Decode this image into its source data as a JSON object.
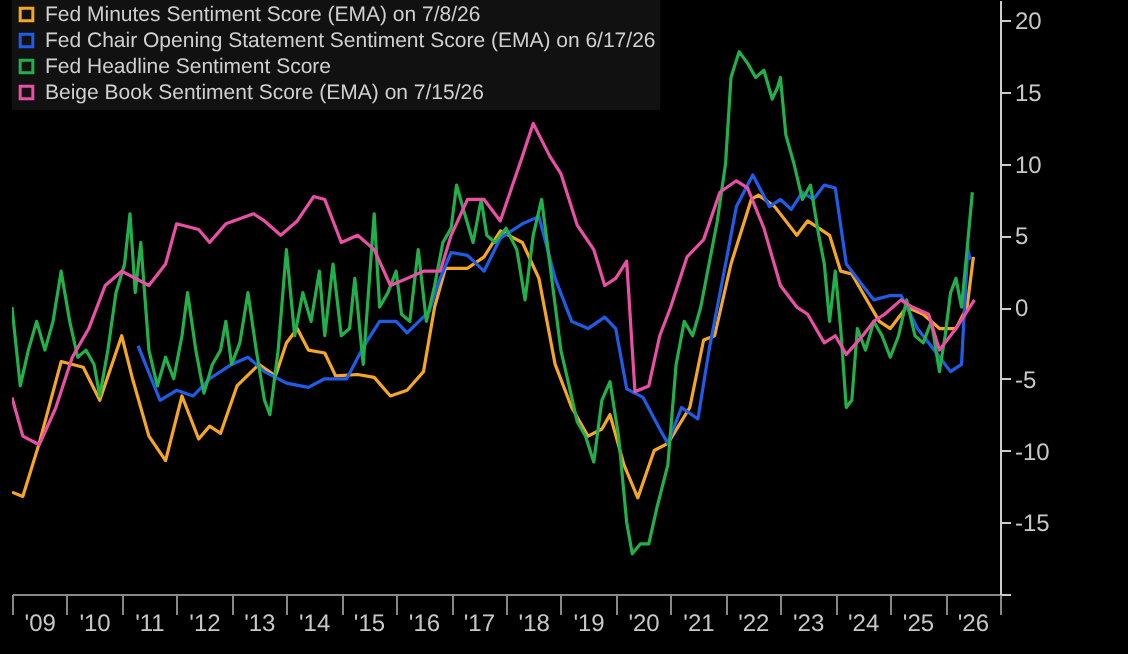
{
  "chart_data": {
    "type": "line",
    "xlim": [
      "2009-01-01",
      "2027-01-01"
    ],
    "xticks": [
      {
        "value": "2009-01-01",
        "label": null
      },
      {
        "value": "2009-07-01",
        "label": "'09"
      },
      {
        "value": "2010-01-01",
        "label": null
      },
      {
        "value": "2010-07-01",
        "label": "'10"
      },
      {
        "value": "2011-01-01",
        "label": null
      },
      {
        "value": "2011-07-01",
        "label": "'11"
      },
      {
        "value": "2012-01-01",
        "label": null
      },
      {
        "value": "2012-07-01",
        "label": "'12"
      },
      {
        "value": "2013-01-01",
        "label": null
      },
      {
        "value": "2013-07-01",
        "label": "'13"
      },
      {
        "value": "2014-01-01",
        "label": null
      },
      {
        "value": "2014-07-01",
        "label": "'14"
      },
      {
        "value": "2015-01-01",
        "label": null
      },
      {
        "value": "2015-07-01",
        "label": "'15"
      },
      {
        "value": "2016-01-01",
        "label": null
      },
      {
        "value": "2016-07-01",
        "label": "'16"
      },
      {
        "value": "2017-01-01",
        "label": null
      },
      {
        "value": "2017-07-01",
        "label": "'17"
      },
      {
        "value": "2018-01-01",
        "label": null
      },
      {
        "value": "2018-07-01",
        "label": "'18"
      },
      {
        "value": "2019-01-01",
        "label": null
      },
      {
        "value": "2019-07-01",
        "label": "'19"
      },
      {
        "value": "2020-01-01",
        "label": null
      },
      {
        "value": "2020-07-01",
        "label": "'20"
      },
      {
        "value": "2021-01-01",
        "label": null
      },
      {
        "value": "2021-07-01",
        "label": "'21"
      },
      {
        "value": "2022-01-01",
        "label": null
      },
      {
        "value": "2022-07-01",
        "label": "'22"
      },
      {
        "value": "2023-01-01",
        "label": null
      },
      {
        "value": "2023-07-01",
        "label": "'23"
      },
      {
        "value": "2024-01-01",
        "label": null
      },
      {
        "value": "2024-07-01",
        "label": "'24"
      },
      {
        "value": "2025-01-01",
        "label": null
      },
      {
        "value": "2025-07-01",
        "label": "'25"
      },
      {
        "value": "2026-01-01",
        "label": null
      },
      {
        "value": "2026-07-01",
        "label": "'26"
      },
      {
        "value": "2027-01-01",
        "label": null
      }
    ],
    "ylim": [
      -20,
      21.4
    ],
    "yticks": [
      {
        "value": -20,
        "label": null
      },
      -15,
      -10,
      -5,
      0,
      5,
      10,
      15,
      20
    ],
    "grid": false,
    "legend": "top left",
    "marker": "none",
    "line_style": "solid",
    "series": [
      {
        "name": "Fed Minutes Sentiment Score (EMA) on 7/8/26",
        "color": "#f5a623",
        "x": [
          "2009-01-01",
          "2009-03-14",
          "2009-07-01",
          "2009-11-24",
          "2010-04-20",
          "2010-08-08",
          "2011-01-01",
          "2011-03-14",
          "2011-07-01",
          "2011-10-20",
          "2012-02-06",
          "2012-05-27",
          "2012-08-08",
          "2012-10-20",
          "2013-02-06",
          "2013-07-01",
          "2013-10-20",
          "2014-01-01",
          "2014-03-14",
          "2014-05-27",
          "2014-09-13",
          "2014-11-24",
          "2015-04-20",
          "2015-08-08",
          "2015-11-24",
          "2016-03-14",
          "2016-07-01",
          "2016-09-13",
          "2016-11-24",
          "2017-04-20",
          "2017-08-08",
          "2017-11-24",
          "2018-04-20",
          "2018-08-08",
          "2018-11-24",
          "2019-03-14",
          "2019-07-01",
          "2019-10-01",
          "2019-11-24",
          "2020-02-25",
          "2020-05-27",
          "2020-09-13",
          "2020-12-13",
          "2021-05-08",
          "2021-08-08",
          "2021-10-20",
          "2022-02-06",
          "2022-06-21",
          "2022-08-08",
          "2022-11-24",
          "2023-04-20",
          "2023-07-01",
          "2023-09-13",
          "2023-11-24",
          "2024-02-06",
          "2024-04-20",
          "2024-07-01",
          "2024-10-20",
          "2025-01-01",
          "2025-04-20",
          "2025-08-08",
          "2025-11-24",
          "2026-03-14",
          "2026-05-27",
          "2026-07-08"
        ],
        "values": [
          -12.9,
          -13.2,
          -9.5,
          -3.8,
          -4.2,
          -6.5,
          -2,
          -5,
          -9,
          -10.7,
          -6.2,
          -9.2,
          -8.3,
          -8.8,
          -5.5,
          -4,
          -4.8,
          -2.5,
          -1.5,
          -3,
          -3.2,
          -4.8,
          -4.7,
          -4.9,
          -6.2,
          -5.8,
          -4.5,
          0,
          2.7,
          2.7,
          3.5,
          5.3,
          4.5,
          2,
          -4,
          -7,
          -9,
          -8.5,
          -7.5,
          -11,
          -13.3,
          -10,
          -9.5,
          -7,
          -2.3,
          -2,
          3,
          7.5,
          7.8,
          7,
          5,
          6,
          5.5,
          5,
          2.5,
          2.3,
          1,
          -1,
          -1.5,
          0,
          -0.5,
          -1.5,
          -1.5,
          0,
          3.5
        ]
      },
      {
        "name": "Fed Chair Opening Statement Sentiment Score (EMA) on 6/17/26",
        "color": "#1f5ce8",
        "x": [
          "2011-04-20",
          "2011-09-13",
          "2012-01-01",
          "2012-04-20",
          "2012-08-08",
          "2013-01-01",
          "2013-04-20",
          "2013-08-08",
          "2014-01-01",
          "2014-05-27",
          "2014-09-13",
          "2015-02-06",
          "2015-05-27",
          "2015-09-13",
          "2016-01-01",
          "2016-03-14",
          "2016-08-08",
          "2016-10-20",
          "2017-01-01",
          "2017-04-20",
          "2017-08-08",
          "2017-11-24",
          "2018-04-20",
          "2018-08-08",
          "2018-11-24",
          "2019-03-14",
          "2019-07-01",
          "2019-10-20",
          "2020-01-01",
          "2020-03-14",
          "2020-07-01",
          "2020-10-20",
          "2020-12-13",
          "2021-03-14",
          "2021-07-01",
          "2021-09-13",
          "2022-01-01",
          "2022-03-14",
          "2022-07-01",
          "2022-10-20",
          "2023-01-01",
          "2023-03-14",
          "2023-05-27",
          "2023-08-08",
          "2023-10-20",
          "2024-01-01",
          "2024-03-14",
          "2024-07-01",
          "2024-09-13",
          "2025-01-01",
          "2025-03-14",
          "2025-07-01",
          "2025-10-20",
          "2026-02-06",
          "2026-04-20",
          "2026-05-15",
          "2026-06-01",
          "2026-06-17"
        ],
        "values": [
          -2.7,
          -6.5,
          -5.8,
          -6.2,
          -5,
          -4,
          -3.5,
          -4.5,
          -5.3,
          -5.6,
          -5,
          -5,
          -2.8,
          -1,
          -1,
          -1.8,
          -0.3,
          2,
          3.8,
          3.6,
          2.5,
          4.8,
          5.8,
          6.3,
          2,
          -1,
          -1.5,
          -0.7,
          -1.5,
          -5.7,
          -6.3,
          -8.5,
          -9.5,
          -7,
          -7.8,
          -3,
          3,
          7,
          9.2,
          7,
          7.5,
          6.8,
          8,
          7.5,
          8.5,
          8.3,
          3,
          1.5,
          0.5,
          0.8,
          0.8,
          -1.5,
          -3,
          -4.5,
          -4,
          1,
          4,
          3.3
        ]
      },
      {
        "name": "Fed Headline Sentiment Score",
        "color": "#22b04a",
        "x": [
          "2009-01-01",
          "2009-02-25",
          "2009-04-20",
          "2009-06-14",
          "2009-08-08",
          "2009-10-01",
          "2009-11-24",
          "2010-01-20",
          "2010-03-14",
          "2010-05-08",
          "2010-07-01",
          "2010-08-08",
          "2010-10-01",
          "2010-11-24",
          "2011-01-20",
          "2011-02-25",
          "2011-04-01",
          "2011-05-08",
          "2011-07-01",
          "2011-08-26",
          "2011-10-20",
          "2011-12-13",
          "2012-02-06",
          "2012-03-14",
          "2012-05-08",
          "2012-07-01",
          "2012-08-26",
          "2012-10-20",
          "2012-11-24",
          "2013-01-01",
          "2013-02-25",
          "2013-04-20",
          "2013-06-14",
          "2013-08-08",
          "2013-09-13",
          "2013-11-07",
          "2014-01-01",
          "2014-02-25",
          "2014-04-20",
          "2014-06-14",
          "2014-08-08",
          "2014-09-13",
          "2014-11-07",
          "2015-01-01",
          "2015-02-25",
          "2015-04-01",
          "2015-05-27",
          "2015-08-08",
          "2015-09-13",
          "2015-11-07",
          "2016-01-01",
          "2016-02-06",
          "2016-04-01",
          "2016-05-27",
          "2016-07-20",
          "2016-09-13",
          "2016-11-07",
          "2017-01-01",
          "2017-02-06",
          "2017-04-01",
          "2017-05-27",
          "2017-07-20",
          "2017-08-26",
          "2017-10-20",
          "2018-01-01",
          "2018-03-14",
          "2018-05-08",
          "2018-07-01",
          "2018-08-26",
          "2018-10-20",
          "2019-01-01",
          "2019-02-25",
          "2019-04-20",
          "2019-06-14",
          "2019-08-08",
          "2019-10-01",
          "2019-11-24",
          "2020-01-20",
          "2020-03-14",
          "2020-04-20",
          "2020-06-14",
          "2020-08-08",
          "2020-10-01",
          "2020-12-13",
          "2021-02-06",
          "2021-04-01",
          "2021-05-27",
          "2021-07-20",
          "2021-09-13",
          "2021-11-07",
          "2022-01-01",
          "2022-02-06",
          "2022-04-01",
          "2022-05-27",
          "2022-07-20",
          "2022-09-13",
          "2022-11-07",
          "2022-12-13",
          "2023-01-01",
          "2023-02-06",
          "2023-04-01",
          "2023-05-27",
          "2023-07-20",
          "2023-09-13",
          "2023-10-20",
          "2023-11-24",
          "2024-01-01",
          "2024-02-06",
          "2024-03-14",
          "2024-04-20",
          "2024-05-27",
          "2024-07-20",
          "2024-09-13",
          "2024-11-07",
          "2025-01-01",
          "2025-02-25",
          "2025-04-20",
          "2025-06-14",
          "2025-08-08",
          "2025-10-01",
          "2025-11-24",
          "2026-01-01",
          "2026-02-06",
          "2026-03-14",
          "2026-04-20",
          "2026-05-27",
          "2026-07-01"
        ],
        "values": [
          0,
          -5.5,
          -3,
          -1,
          -3,
          -1,
          2.5,
          -1,
          -3.5,
          -3,
          -4,
          -6.2,
          -3,
          1,
          3,
          6.5,
          1,
          4.5,
          -3,
          -5.5,
          -3.5,
          -5,
          -2,
          1,
          -3,
          -6,
          -4,
          -3,
          -1,
          -4,
          -2.5,
          1,
          -3,
          -6.5,
          -7.5,
          -3,
          4,
          -2,
          1,
          -1,
          2.5,
          -2,
          3,
          -2,
          -1.5,
          2,
          -4,
          6.5,
          0,
          1,
          2.5,
          -0.5,
          -1,
          4,
          -1,
          1.5,
          4.5,
          5.5,
          8.5,
          6.5,
          4.5,
          7.5,
          5,
          4.5,
          5.5,
          4,
          0.5,
          5,
          7.5,
          3,
          -3,
          -5.5,
          -8,
          -9,
          -10.8,
          -6.5,
          -5.2,
          -9,
          -15,
          -17.2,
          -16.5,
          -16.5,
          -14,
          -11,
          -4,
          -1,
          -2,
          0,
          3,
          6,
          10,
          16,
          17.8,
          17,
          16,
          16.5,
          14.5,
          15.3,
          16,
          12,
          10,
          7.5,
          8.5,
          5,
          3,
          -1,
          2.5,
          -1.5,
          -7,
          -6.5,
          -1.5,
          -3,
          -1,
          -2,
          -3.5,
          -2,
          0.5,
          -2,
          -2.5,
          -1,
          -4.5,
          -2,
          1,
          2,
          0,
          4,
          8
        ]
      },
      {
        "name": "Beige Book Sentiment Score (EMA) on 7/15/26",
        "color": "#e84fa5",
        "x": [
          "2009-01-01",
          "2009-03-14",
          "2009-07-01",
          "2009-10-20",
          "2010-02-06",
          "2010-05-27",
          "2010-09-13",
          "2011-01-01",
          "2011-07-01",
          "2011-10-20",
          "2012-01-01",
          "2012-05-27",
          "2012-08-08",
          "2012-11-24",
          "2013-05-27",
          "2013-08-08",
          "2013-11-24",
          "2014-03-14",
          "2014-07-01",
          "2014-09-13",
          "2015-01-01",
          "2015-04-20",
          "2015-08-08",
          "2015-11-24",
          "2016-03-14",
          "2016-07-01",
          "2016-10-20",
          "2017-01-01",
          "2017-04-20",
          "2017-08-08",
          "2017-11-24",
          "2018-04-20",
          "2018-07-01",
          "2018-10-20",
          "2019-01-01",
          "2019-04-20",
          "2019-08-08",
          "2019-10-20",
          "2020-01-01",
          "2020-03-14",
          "2020-05-08",
          "2020-08-08",
          "2020-10-20",
          "2021-01-01",
          "2021-04-20",
          "2021-08-08",
          "2021-11-24",
          "2022-03-14",
          "2022-05-27",
          "2022-09-13",
          "2023-01-01",
          "2023-04-20",
          "2023-07-01",
          "2023-10-20",
          "2024-01-01",
          "2024-03-14",
          "2024-07-01",
          "2024-09-13",
          "2024-11-24",
          "2025-03-14",
          "2025-05-27",
          "2025-09-13",
          "2025-11-24",
          "2026-03-14",
          "2026-07-15"
        ],
        "values": [
          -6.3,
          -9,
          -9.6,
          -7,
          -3.5,
          -1.5,
          1.5,
          2.5,
          1.5,
          3,
          5.8,
          5.4,
          4.5,
          5.8,
          6.5,
          6,
          5,
          6,
          7.7,
          7.5,
          4.5,
          5,
          4,
          1.5,
          2,
          2.5,
          2.5,
          5,
          7.5,
          7.5,
          6,
          10.5,
          12.8,
          10.5,
          9.3,
          5.7,
          4,
          1.5,
          2,
          3.2,
          -5.9,
          -5.5,
          -2,
          0,
          3.5,
          4.7,
          8,
          8.8,
          8.3,
          5.5,
          1.5,
          0,
          -0.5,
          -2.5,
          -2,
          -3.3,
          -2,
          -1,
          -0.5,
          0.5,
          0,
          -0.5,
          -3,
          -1.5,
          0.5
        ]
      }
    ]
  }
}
